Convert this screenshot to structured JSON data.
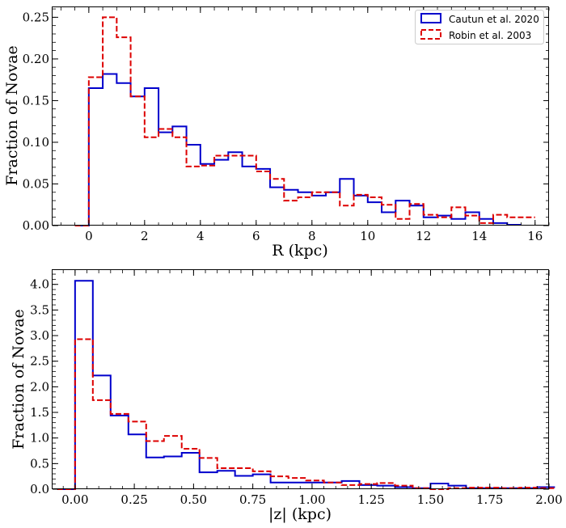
{
  "colors": {
    "cautun": "#0000cc",
    "robin": "#dd0000"
  },
  "legend": {
    "cautun": "Cautun et al. 2020",
    "robin": "Robin et al. 2003"
  },
  "chart_data": [
    {
      "type": "histogram-step",
      "title": "",
      "xlabel": "R (kpc)",
      "ylabel": "Fraction of Novae",
      "xlim": [
        -1.3,
        16.5
      ],
      "ylim": [
        0,
        0.262
      ],
      "xticks": [
        0,
        2,
        4,
        6,
        8,
        10,
        12,
        14,
        16
      ],
      "xtick_labels": [
        "0",
        "2",
        "4",
        "6",
        "8",
        "10",
        "12",
        "14",
        "16"
      ],
      "yticks": [
        0,
        0.05,
        0.1,
        0.15,
        0.2,
        0.25
      ],
      "ytick_labels": [
        "0.00",
        "0.05",
        "0.10",
        "0.15",
        "0.20",
        "0.25"
      ],
      "x_minor_step": 0.5,
      "y_minor_step": 0.01,
      "bin_start": -0.5,
      "bin_width": 0.5,
      "series": [
        {
          "name": "Cautun et al. 2020",
          "style": "solid",
          "values": [
            0.0,
            0.165,
            0.182,
            0.171,
            0.155,
            0.165,
            0.112,
            0.119,
            0.097,
            0.074,
            0.079,
            0.088,
            0.071,
            0.068,
            0.046,
            0.043,
            0.04,
            0.036,
            0.04,
            0.056,
            0.036,
            0.028,
            0.016,
            0.03,
            0.024,
            0.01,
            0.012,
            0.008,
            0.016,
            0.008,
            0.003,
            0.001
          ]
        },
        {
          "name": "Robin et al. 2003",
          "style": "dashed",
          "values": [
            0.0,
            0.178,
            0.25,
            0.226,
            0.155,
            0.106,
            0.116,
            0.106,
            0.071,
            0.072,
            0.084,
            0.084,
            0.084,
            0.065,
            0.056,
            0.03,
            0.034,
            0.04,
            0.04,
            0.024,
            0.037,
            0.034,
            0.025,
            0.008,
            0.026,
            0.013,
            0.01,
            0.022,
            0.012,
            0.003,
            0.013,
            0.01,
            0.01
          ]
        }
      ]
    },
    {
      "type": "histogram-step",
      "title": "",
      "xlabel": "|z| (kpc)",
      "ylabel": "Fraction of Novae",
      "xlim": [
        -0.095,
        2.0
      ],
      "ylim": [
        0,
        4.28
      ],
      "xticks": [
        0,
        0.25,
        0.5,
        0.75,
        1.0,
        1.25,
        1.5,
        1.75,
        2.0
      ],
      "xtick_labels": [
        "0.00",
        "0.25",
        "0.50",
        "0.75",
        "1.00",
        "1.25",
        "1.50",
        "1.75",
        "2.00"
      ],
      "yticks": [
        0,
        0.5,
        1.0,
        1.5,
        2.0,
        2.5,
        3.0,
        3.5,
        4.0
      ],
      "ytick_labels": [
        "0.0",
        "0.5",
        "1.0",
        "1.5",
        "2.0",
        "2.5",
        "3.0",
        "3.5",
        "4.0"
      ],
      "x_minor_step": 0.05,
      "y_minor_step": 0.1,
      "bin_start": -0.075,
      "bin_width": 0.075,
      "series": [
        {
          "name": "Cautun et al. 2020",
          "style": "solid",
          "values": [
            0.0,
            4.07,
            2.22,
            1.44,
            1.07,
            0.62,
            0.64,
            0.71,
            0.33,
            0.36,
            0.26,
            0.29,
            0.13,
            0.13,
            0.13,
            0.13,
            0.16,
            0.08,
            0.07,
            0.04,
            0.02,
            0.11,
            0.07,
            0.02,
            0.02,
            0.02,
            0.02,
            0.04
          ]
        },
        {
          "name": "Robin et al. 2003",
          "style": "dashed",
          "values": [
            0.0,
            2.93,
            1.74,
            1.47,
            1.32,
            0.94,
            1.04,
            0.79,
            0.61,
            0.41,
            0.41,
            0.35,
            0.25,
            0.22,
            0.17,
            0.13,
            0.08,
            0.1,
            0.12,
            0.07,
            0.02,
            0.0,
            0.02,
            0.03,
            0.03,
            0.02,
            0.03,
            0.02
          ]
        }
      ]
    }
  ]
}
